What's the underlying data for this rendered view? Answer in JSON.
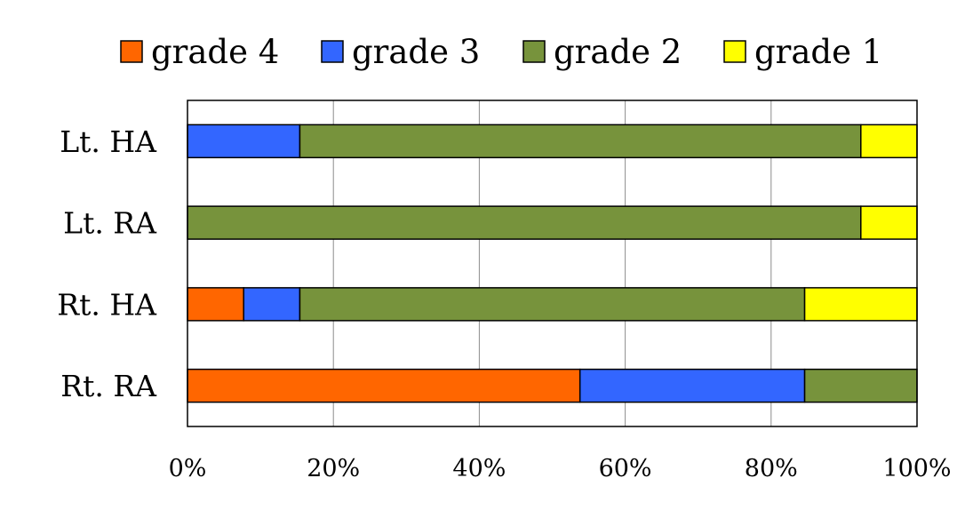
{
  "chart_data": {
    "type": "bar",
    "orientation": "horizontal",
    "stacked": "percent",
    "categories": [
      "Lt. HA",
      "Lt. RA",
      "Rt. HA",
      "Rt. RA"
    ],
    "series": [
      {
        "name": "grade 4",
        "color": "#ff6600",
        "values": [
          0,
          0,
          7.7,
          53.8
        ]
      },
      {
        "name": "grade 3",
        "color": "#3366ff",
        "values": [
          15.4,
          0,
          7.7,
          30.8
        ]
      },
      {
        "name": "grade 2",
        "color": "#77933c",
        "values": [
          76.9,
          92.3,
          69.2,
          15.4
        ]
      },
      {
        "name": "grade 1",
        "color": "#ffff00",
        "values": [
          7.7,
          7.7,
          15.4,
          0
        ]
      }
    ],
    "xlim": [
      0,
      100
    ],
    "xticks": [
      "0%",
      "20%",
      "40%",
      "60%",
      "80%",
      "100%"
    ],
    "grid": "vertical",
    "legend_position": "top"
  }
}
